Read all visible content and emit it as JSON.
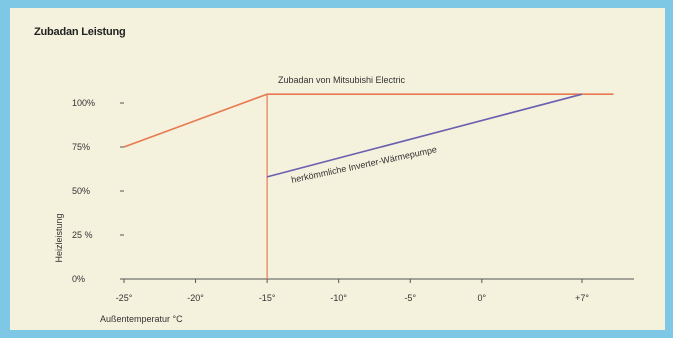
{
  "chart_data": {
    "type": "line",
    "title": "Zubadan Leistung",
    "xlabel": "Außentemperatur °C",
    "ylabel": "Heizleistung",
    "x_ticks": [
      -25,
      -20,
      -15,
      -10,
      -5,
      0,
      7
    ],
    "x_tick_labels": [
      "-25°",
      "-20°",
      "-15°",
      "-10°",
      "-5°",
      "0°",
      "+7°"
    ],
    "y_ticks": [
      0,
      25,
      50,
      75,
      100
    ],
    "y_tick_labels": [
      "0%",
      "25 %",
      "50%",
      "75%",
      "100%"
    ],
    "xlim": [
      -25,
      10
    ],
    "ylim": [
      0,
      100
    ],
    "grid": false,
    "series": [
      {
        "name": "Zubadan von Mitsubishi Electric",
        "color": "#e87a52",
        "x": [
          -25,
          -15,
          10
        ],
        "y": [
          75,
          105,
          105
        ]
      },
      {
        "name": "herkömmliche Inverter-Wärmepumpe",
        "color": "#6a5fb0",
        "x": [
          -15,
          7
        ],
        "y": [
          58,
          105
        ]
      }
    ],
    "reference_line": {
      "x": -15,
      "color": "#e87a52"
    }
  }
}
